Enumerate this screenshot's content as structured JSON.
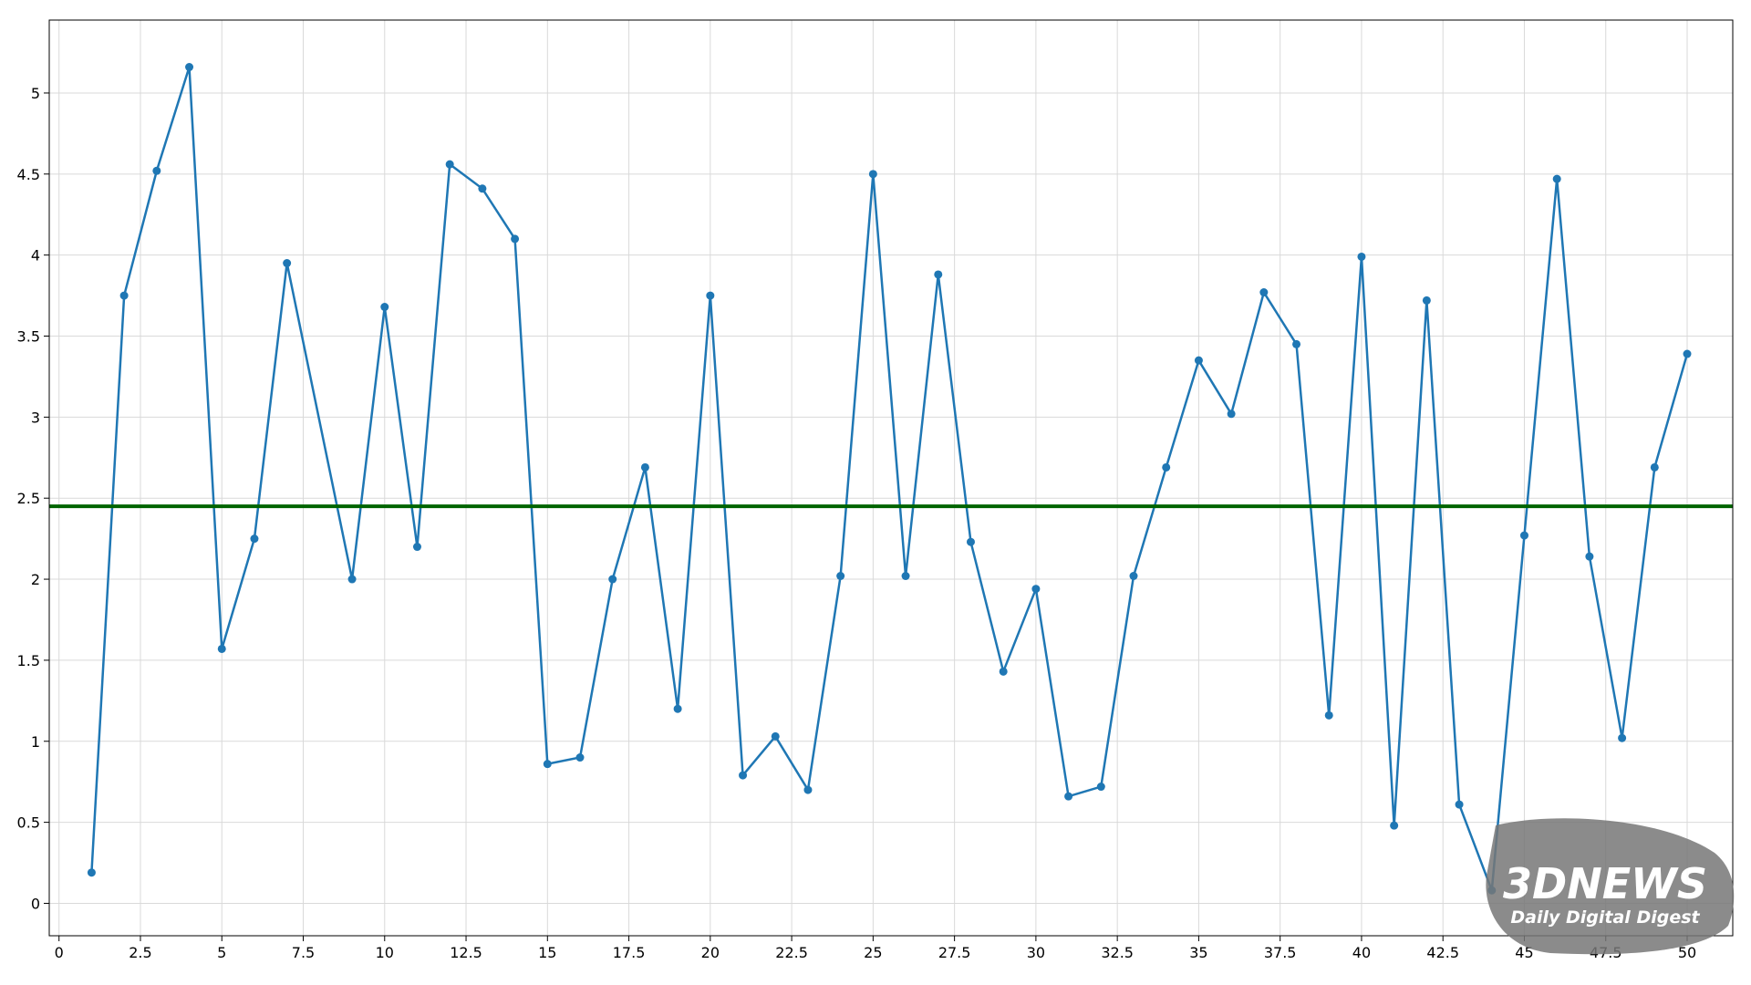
{
  "chart_data": {
    "type": "line",
    "x": [
      1,
      2,
      3,
      4,
      5,
      6,
      7,
      9,
      10,
      11,
      12,
      13,
      14,
      15,
      16,
      17,
      18,
      19,
      20,
      21,
      22,
      23,
      24,
      25,
      26,
      27,
      28,
      29,
      30,
      31,
      32,
      33,
      34,
      35,
      36,
      37,
      38,
      39,
      40,
      41,
      42,
      43,
      44,
      45,
      46,
      47,
      48,
      49,
      50
    ],
    "series": [
      {
        "color": "#1f77b4",
        "values": [
          0.19,
          3.75,
          4.52,
          5.16,
          1.57,
          2.25,
          3.95,
          2.0,
          3.68,
          2.2,
          4.56,
          4.41,
          4.1,
          0.86,
          0.9,
          2.0,
          2.69,
          1.2,
          3.75,
          0.79,
          1.03,
          0.7,
          2.02,
          4.5,
          2.02,
          3.88,
          2.23,
          1.43,
          1.94,
          0.66,
          0.72,
          2.02,
          2.69,
          3.35,
          3.02,
          3.77,
          3.45,
          1.16,
          3.99,
          0.48,
          3.72,
          0.61,
          0.08,
          2.27,
          4.47,
          2.14,
          1.02,
          2.69,
          3.39
        ]
      }
    ],
    "reference_line": {
      "value": 2.45,
      "color": "#006400"
    },
    "xlim": [
      -0.3,
      51.4
    ],
    "ylim": [
      -0.2,
      5.45
    ],
    "xticks": [
      0,
      2.5,
      5,
      7.5,
      10,
      12.5,
      15,
      17.5,
      20,
      22.5,
      25,
      27.5,
      30,
      32.5,
      35,
      37.5,
      40,
      42.5,
      45,
      47.5,
      50
    ],
    "yticks": [
      0,
      0.5,
      1,
      1.5,
      2,
      2.5,
      3,
      3.5,
      4,
      4.5,
      5
    ],
    "grid": true,
    "watermark": {
      "logo": "3DNEWS",
      "tagline": "Daily Digital Digest"
    }
  }
}
